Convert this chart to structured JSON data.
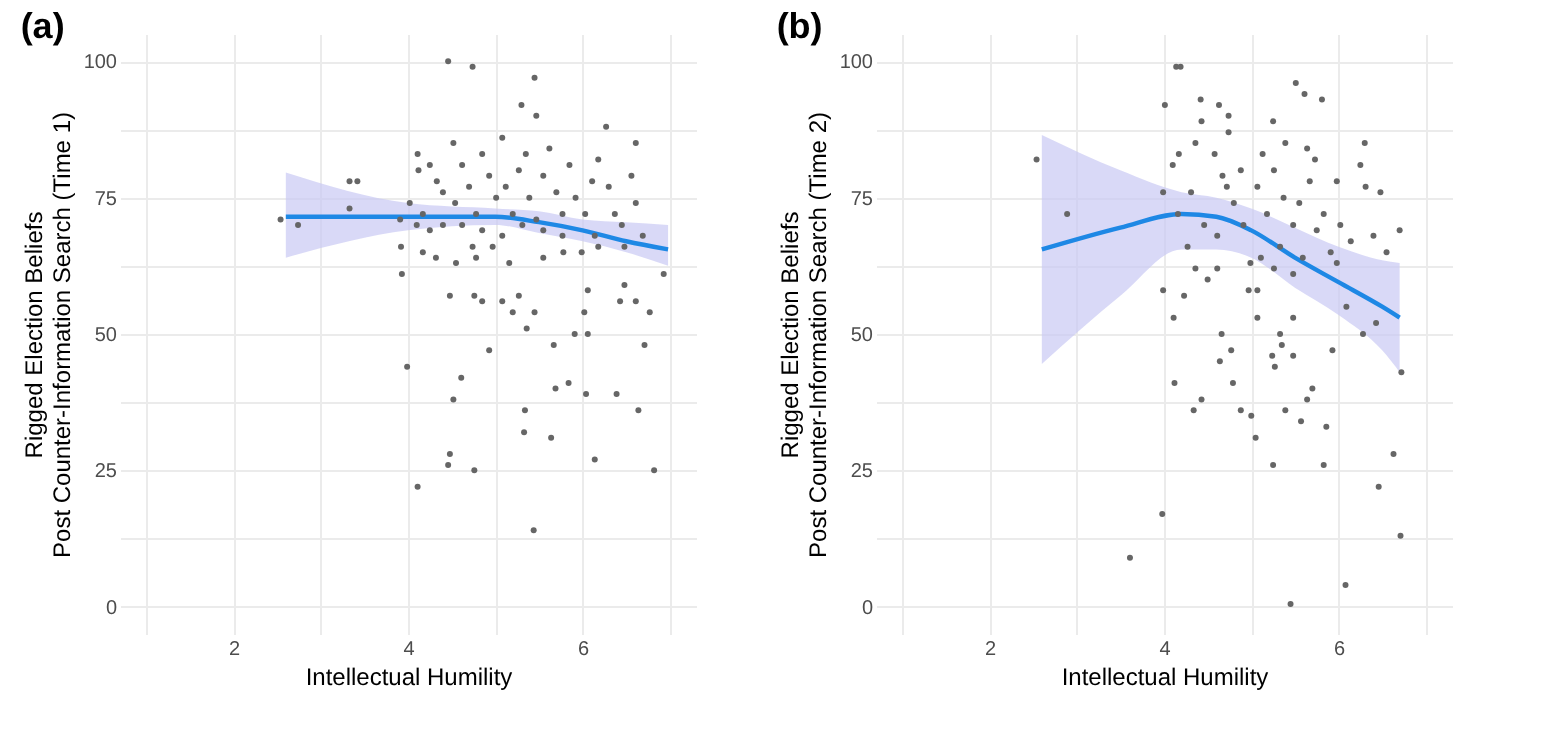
{
  "chart_data": [
    {
      "type": "scatter",
      "title": "(a)",
      "xlabel": "Intellectual Humility",
      "ylabel": "Rigged Election Beliefs\nPost Counter-Information Search (Time 1)",
      "xlim": [
        0.7,
        7.3
      ],
      "ylim": [
        -5,
        105
      ],
      "xticks": [
        {
          "value": 1,
          "label": null
        },
        2,
        {
          "value": 3,
          "label": null
        },
        4,
        {
          "value": 5,
          "label": null
        },
        6,
        {
          "value": 7,
          "label": null
        }
      ],
      "yticks": [
        0,
        {
          "value": 12.5,
          "label": null
        },
        25,
        {
          "value": 37.5,
          "label": null
        },
        50,
        {
          "value": 62.5,
          "label": null
        },
        75,
        {
          "value": 87.5,
          "label": null
        },
        100
      ],
      "grid": true,
      "series": [
        {
          "marker": "circle",
          "color": "#666666",
          "x": [
            2.54,
            2.74,
            3.33,
            3.42,
            3.33,
            3.93,
            3.99,
            3.92,
            4.11,
            4.11,
            4.46,
            4.74,
            4.46,
            4.48,
            4.76,
            4.52,
            4.61,
            4.48,
            4.93,
            4.76,
            4.85,
            5.3,
            5.45,
            5.47,
            5.33,
            5.34,
            5.36,
            5.44,
            5.64,
            5.67,
            5.69,
            5.84,
            5.91,
            6.06,
            6.04,
            6.14,
            6.39,
            6.64,
            6.71,
            6.82,
            6.93,
            6.27,
            6.61,
            6.02,
            6.06,
            6.43,
            6.48,
            6.61,
            6.77,
            5.45,
            5.2,
            5.27,
            5.08,
            4.55,
            4.78,
            4.17,
            4.32,
            5.16,
            5.55,
            5.78,
            5.99,
            6.18,
            6.48,
            6.69,
            4.12,
            4.25,
            4.33,
            4.4,
            4.52,
            4.54,
            4.62,
            4.7,
            4.78,
            4.85,
            4.93,
            5.01,
            5.08,
            5.12,
            5.2,
            5.27,
            5.35,
            5.39,
            5.47,
            5.55,
            5.62,
            5.7,
            5.77,
            5.85,
            5.92,
            6.03,
            6.11,
            6.18,
            6.3,
            6.37,
            6.45,
            6.56,
            6.61,
            4.17,
            4.25,
            4.4,
            4.62,
            4.85,
            5.08,
            5.31,
            5.55,
            5.77,
            6.14,
            4.02,
            4.1,
            3.91,
            4.74,
            4.97
          ],
          "values": [
            71,
            70,
            78,
            78,
            73,
            61,
            44,
            66,
            22,
            83,
            100,
            99,
            26,
            28,
            25,
            38,
            42,
            57,
            47,
            57,
            56,
            92,
            97,
            90,
            32,
            36,
            51,
            14,
            31,
            48,
            40,
            41,
            50,
            50,
            39,
            27,
            39,
            36,
            48,
            25,
            61,
            88,
            85,
            54,
            58,
            56,
            59,
            56,
            54,
            54,
            54,
            57,
            56,
            63,
            64,
            65,
            64,
            63,
            64,
            65,
            65,
            66,
            66,
            68,
            80,
            81,
            78,
            76,
            85,
            74,
            81,
            77,
            72,
            83,
            79,
            75,
            86,
            77,
            72,
            80,
            83,
            75,
            71,
            79,
            84,
            76,
            72,
            81,
            75,
            72,
            78,
            82,
            77,
            72,
            70,
            79,
            74,
            72,
            69,
            70,
            70,
            69,
            68,
            70,
            69,
            68,
            68,
            74,
            70,
            71,
            66,
            66
          ]
        },
        {
          "type": "line",
          "color": "#1e88e5",
          "line_style": "solid",
          "x": [
            2.6,
            4,
            5,
            5.5,
            6,
            6.5,
            6.98
          ],
          "values": [
            71.5,
            71.5,
            71.5,
            70.5,
            69,
            67,
            65.5
          ],
          "lower": [
            64,
            69,
            70,
            68.5,
            67,
            65,
            62.5
          ],
          "upper": [
            79.6,
            74,
            73,
            72.5,
            71,
            70.5,
            70
          ]
        }
      ]
    },
    {
      "type": "scatter",
      "title": "(b)",
      "xlabel": "Intellectual Humility",
      "ylabel": "Rigged Election Beliefs\nPost Counter-Information Search (Time 2)",
      "xlim": [
        0.7,
        7.3
      ],
      "ylim": [
        -5,
        105
      ],
      "xticks": [
        {
          "value": 1,
          "label": null
        },
        2,
        {
          "value": 3,
          "label": null
        },
        4,
        {
          "value": 5,
          "label": null
        },
        6,
        {
          "value": 7,
          "label": null
        }
      ],
      "yticks": [
        0,
        {
          "value": 12.5,
          "label": null
        },
        25,
        {
          "value": 37.5,
          "label": null
        },
        50,
        {
          "value": 62.5,
          "label": null
        },
        75,
        {
          "value": 87.5,
          "label": null
        },
        100
      ],
      "grid": true,
      "series": [
        {
          "marker": "circle",
          "color": "#666666",
          "x": [
            2.54,
            2.89,
            3.61,
            3.98,
            3.99,
            3.99,
            4.01,
            4.11,
            4.12,
            4.14,
            4.19,
            4.1,
            4.17,
            4.23,
            4.34,
            4.43,
            4.36,
            4.5,
            4.42,
            4.63,
            4.43,
            4.74,
            4.36,
            4.74,
            4.66,
            4.77,
            4.64,
            4.79,
            4.88,
            5.0,
            5.05,
            4.97,
            5.07,
            5.07,
            5.25,
            5.39,
            5.25,
            5.45,
            5.24,
            5.27,
            5.33,
            5.35,
            5.48,
            5.39,
            5.48,
            5.51,
            5.61,
            5.81,
            5.57,
            5.64,
            5.7,
            5.86,
            5.83,
            5.93,
            6.09,
            6.08,
            6.3,
            6.25,
            6.31,
            6.48,
            6.28,
            6.43,
            6.46,
            6.63,
            6.71,
            6.72,
            6.7,
            6.55,
            6.4,
            6.14,
            6.02,
            5.98,
            5.73,
            5.64,
            4.31,
            4.46,
            4.61,
            4.72,
            4.8,
            4.88,
            4.91,
            4.99,
            5.07,
            5.13,
            5.18,
            5.26,
            5.33,
            5.37,
            5.48,
            5.55,
            5.59,
            5.67,
            5.75,
            5.83,
            5.91,
            5.98,
            4.58,
            4.67,
            4.27,
            4.16,
            4.61,
            5.26,
            5.48,
            5.11
          ],
          "values": [
            82,
            72,
            9,
            17,
            76,
            58,
            92,
            53,
            41,
            99,
            99,
            81,
            83,
            57,
            36,
            38,
            62,
            60,
            93,
            92,
            89,
            90,
            85,
            87,
            50,
            47,
            45,
            41,
            36,
            35,
            31,
            58,
            58,
            53,
            89,
            85,
            26,
            0.5,
            46,
            44,
            50,
            48,
            53,
            36,
            46,
            96,
            94,
            93,
            34,
            38,
            40,
            33,
            26,
            47,
            55,
            4,
            85,
            81,
            77,
            76,
            50,
            52,
            22,
            28,
            13,
            43,
            69,
            65,
            68,
            67,
            70,
            78,
            82,
            84,
            76,
            70,
            68,
            77,
            74,
            80,
            70,
            63,
            77,
            83,
            72,
            80,
            66,
            75,
            70,
            74,
            64,
            78,
            69,
            72,
            65,
            63,
            83,
            79,
            66,
            72,
            62,
            62,
            61,
            64
          ]
        },
        {
          "type": "line",
          "color": "#1e88e5",
          "line_style": "solid",
          "x": [
            2.6,
            3.5,
            4.2,
            4.6,
            5.0,
            5.5,
            6.0,
            6.5,
            6.7
          ],
          "values": [
            65.5,
            69.5,
            72,
            71.5,
            69,
            64,
            59.5,
            55,
            53
          ],
          "lower": [
            44.5,
            57,
            65.5,
            65.5,
            64,
            58.5,
            53.5,
            47,
            43
          ],
          "upper": [
            86.5,
            80,
            76,
            75,
            73,
            69.5,
            66,
            63.5,
            63
          ]
        }
      ]
    }
  ]
}
